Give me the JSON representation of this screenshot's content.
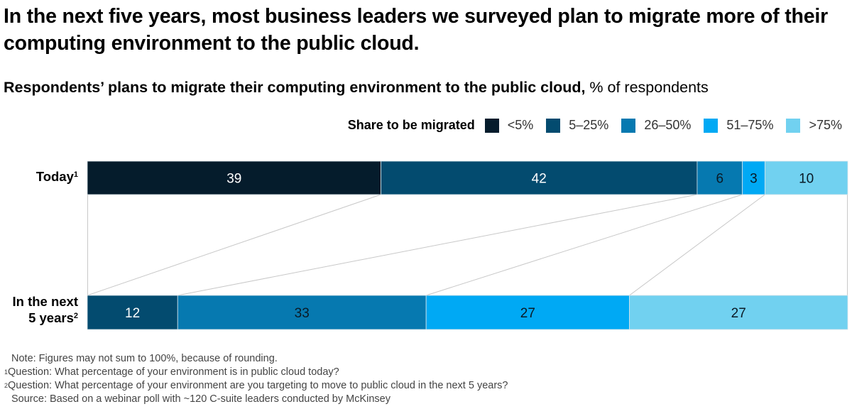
{
  "title": "In the next five years, most business leaders we surveyed plan to migrate more of their computing environment to the public cloud.",
  "subtitle": {
    "bold": "Respondents’ plans to migrate their computing environment to the public cloud,",
    "regular": " % of respondents"
  },
  "chart_data": {
    "type": "bar",
    "orientation": "horizontal-stacked",
    "title": "Respondents’ plans to migrate their computing environment to the public cloud",
    "unit": "% of respondents",
    "legend_title": "Share to be migrated",
    "legend_position": "top-right",
    "categories": [
      {
        "label": "Today",
        "footnote": "1"
      },
      {
        "label_line1": "In the next",
        "label_line2": "5 years",
        "footnote": "2"
      }
    ],
    "series": [
      {
        "name": "<5%",
        "color": "#051c2c",
        "label_color": "#ffffff",
        "values": [
          39,
          0
        ]
      },
      {
        "name": "5–25%",
        "color": "#034b6f",
        "label_color": "#ffffff",
        "values": [
          42,
          12
        ]
      },
      {
        "name": "26–50%",
        "color": "#0679b0",
        "label_color": "#0a1a26",
        "values": [
          6,
          33
        ]
      },
      {
        "name": "51–75%",
        "color": "#00a9f4",
        "label_color": "#0a1a26",
        "values": [
          3,
          27
        ]
      },
      {
        "name": ">75%",
        "color": "#71d1f0",
        "label_color": "#0a1a26",
        "values": [
          10,
          27
        ]
      }
    ],
    "connectors": true
  },
  "notes": {
    "note": "Note: Figures may not sum to 100%, because of rounding.",
    "fn1_mark": "1",
    "fn1": "Question: What percentage of your environment is in public cloud today?",
    "fn2_mark": "2",
    "fn2": "Question: What percentage of your environment are you targeting to move to public cloud in the next 5 years?",
    "source": "Source: Based on a webinar poll with ~120 C-suite leaders conducted by McKinsey"
  }
}
